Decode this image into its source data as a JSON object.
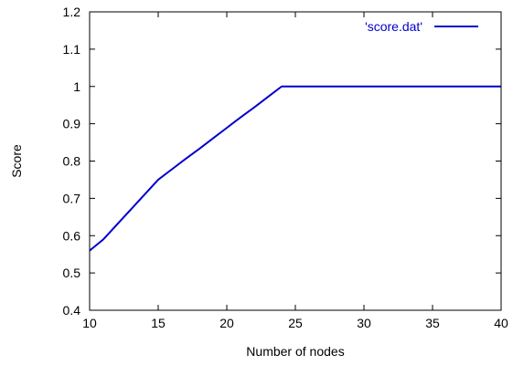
{
  "chart_data": {
    "type": "line",
    "title": "",
    "xlabel": "Number of nodes",
    "ylabel": "Score",
    "xlim": [
      10,
      40
    ],
    "ylim": [
      0.4,
      1.2
    ],
    "x_ticks": [
      10,
      15,
      20,
      25,
      30,
      35,
      40
    ],
    "y_ticks": [
      0.4,
      0.5,
      0.6,
      0.7,
      0.8,
      0.9,
      1.0,
      1.1,
      1.2
    ],
    "x_tick_labels": [
      "10",
      "15",
      "20",
      "25",
      "30",
      "35",
      "40"
    ],
    "y_tick_labels": [
      "0.4",
      "0.5",
      "0.6",
      "0.7",
      "0.8",
      "0.9",
      "1",
      "1.1",
      "1.2"
    ],
    "grid": false,
    "legend_position": "top-right",
    "series": [
      {
        "name": "'score.dat'",
        "color": "#0000cc",
        "x": [
          10,
          11,
          12,
          13,
          14,
          15,
          16,
          17,
          18,
          19,
          20,
          21,
          22,
          23,
          24,
          25,
          26,
          27,
          28,
          29,
          30,
          31,
          32,
          33,
          34,
          35,
          36,
          37,
          38,
          39,
          40
        ],
        "y": [
          0.56,
          0.59,
          0.63,
          0.67,
          0.71,
          0.75,
          0.778,
          0.806,
          0.833,
          0.861,
          0.889,
          0.917,
          0.944,
          0.972,
          1.0,
          1.0,
          1.0,
          1.0,
          1.0,
          1.0,
          1.0,
          1.0,
          1.0,
          1.0,
          1.0,
          1.0,
          1.0,
          1.0,
          1.0,
          1.0,
          1.0
        ]
      }
    ]
  }
}
